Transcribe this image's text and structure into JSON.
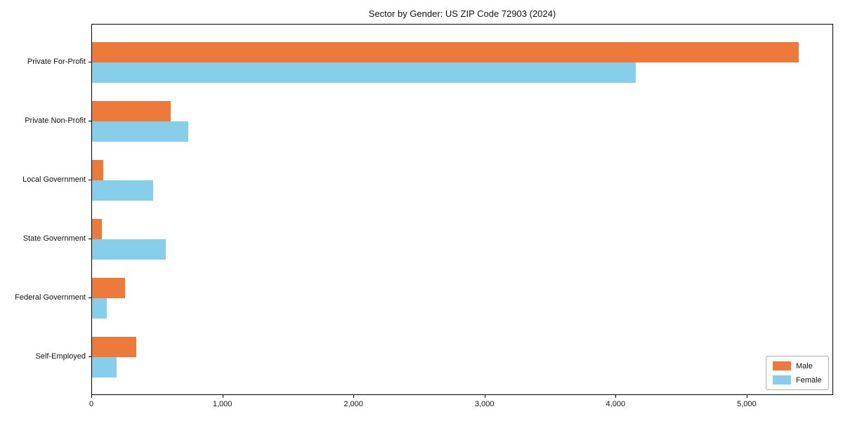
{
  "title": "Sector by Gender: US ZIP Code 72903 (2024)",
  "chart_data": {
    "type": "bar",
    "orientation": "horizontal",
    "title": "Sector by Gender: US ZIP Code 72903 (2024)",
    "categories": [
      "Private For-Profit",
      "Private Non-Profit",
      "Local Government",
      "State Government",
      "Federal Government",
      "Self-Employed"
    ],
    "series": [
      {
        "name": "Male",
        "color": "#ED7A3B",
        "values": [
          5390,
          600,
          85,
          75,
          250,
          340
        ]
      },
      {
        "name": "Female",
        "color": "#87CEEB",
        "values": [
          4150,
          735,
          465,
          560,
          110,
          185
        ]
      }
    ],
    "xlabel": "",
    "ylabel": "",
    "xlim": [
      0,
      5660
    ],
    "xticks": [
      0,
      1000,
      2000,
      3000,
      4000,
      5000
    ],
    "xtick_labels": [
      "0",
      "1,000",
      "2,000",
      "3,000",
      "4,000",
      "5,000"
    ],
    "grid": false,
    "legend_position": "lower right"
  },
  "legend": {
    "items": [
      {
        "label": "Male",
        "color": "#ED7A3B"
      },
      {
        "label": "Female",
        "color": "#87CEEB"
      }
    ]
  }
}
